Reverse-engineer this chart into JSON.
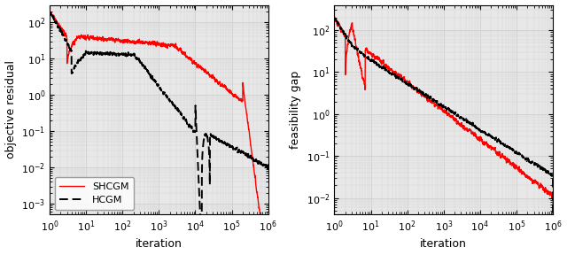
{
  "xlim": [
    1,
    1000000
  ],
  "ylim_left": [
    0.0005,
    300
  ],
  "ylim_right": [
    0.004,
    400
  ],
  "xlabel": "iteration",
  "ylabel_left": "objective residual",
  "ylabel_right": "feasibility gap",
  "shcgm_color": "#ff0000",
  "hcgm_color": "#000000",
  "shcgm_label": "SHCGM",
  "hcgm_label": "HCGM",
  "grid_color": "#d0d0d0",
  "background_color": "#e8e8e8",
  "legend_loc": "lower left",
  "fontsize": 9
}
